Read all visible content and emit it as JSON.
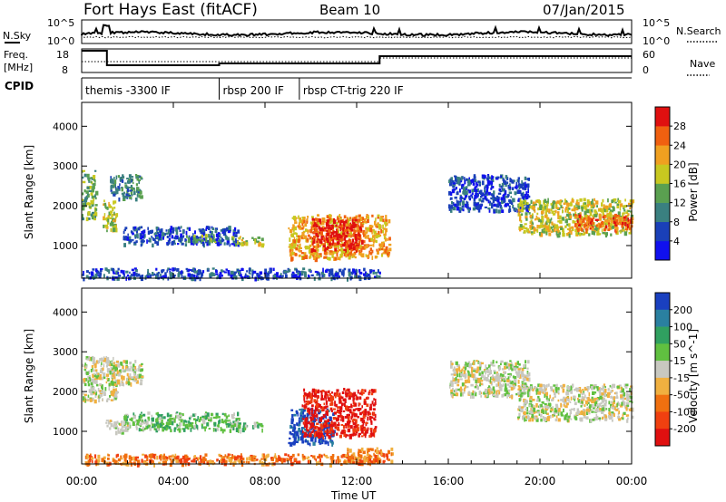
{
  "header": {
    "title": "Fort Hays East (fitACF)",
    "beam": "Beam 10",
    "date": "07/Jan/2015"
  },
  "sky_panel": {
    "left_label": "N.Sky",
    "right_label": "N.Search",
    "left_ticks": [
      "10^5",
      "10^0"
    ],
    "right_ticks": [
      "10^5",
      "10^0"
    ]
  },
  "freq_panel": {
    "left_label_top": "Freq.",
    "left_label_bottom": "[MHz]",
    "left_ticks": [
      "18",
      "8"
    ],
    "right_label": "Nave",
    "right_ticks": [
      "60",
      "0"
    ]
  },
  "cpid": {
    "label": "CPID",
    "segments": [
      {
        "start_hour": 0.0,
        "text": "themis -3300 IF"
      },
      {
        "start_hour": 6.0,
        "text": "rbsp 200 IF"
      },
      {
        "start_hour": 9.5,
        "text": "rbsp CT-trig 220 IF"
      }
    ]
  },
  "chart_data": [
    {
      "type": "heatmap",
      "name": "power",
      "ylabel": "Slant Range [km]",
      "xlim": [
        0,
        24
      ],
      "ylim": [
        180,
        4600
      ],
      "yticks": [
        "1000",
        "2000",
        "3000",
        "4000"
      ],
      "colorbar": {
        "label": "Power [dB]",
        "ticks": [
          "4",
          "8",
          "12",
          "16",
          "20",
          "24",
          "28"
        ],
        "colors": [
          "#1010ee",
          "#1a40b8",
          "#3a8080",
          "#5aa050",
          "#c8c820",
          "#f0a020",
          "#f06010",
          "#e01010"
        ]
      },
      "regions": [
        {
          "x": [
            0.0,
            0.6
          ],
          "y": [
            1700,
            2900
          ],
          "level": 3
        },
        {
          "x": [
            0.9,
            1.5
          ],
          "y": [
            1400,
            2200
          ],
          "level": 4
        },
        {
          "x": [
            1.2,
            2.6
          ],
          "y": [
            2200,
            2800
          ],
          "level": 2
        },
        {
          "x": [
            1.8,
            6.8
          ],
          "y": [
            1050,
            1500
          ],
          "level": 1
        },
        {
          "x": [
            4.5,
            5.8
          ],
          "y": [
            1100,
            1300
          ],
          "level": 3
        },
        {
          "x": [
            6.5,
            7.9
          ],
          "y": [
            1050,
            1250
          ],
          "level": 4
        },
        {
          "x": [
            9.0,
            13.4
          ],
          "y": [
            700,
            1800
          ],
          "level": 5
        },
        {
          "x": [
            10.0,
            12.2
          ],
          "y": [
            900,
            1700
          ],
          "level": 7
        },
        {
          "x": [
            16.0,
            19.5
          ],
          "y": [
            1900,
            2800
          ],
          "level": 1
        },
        {
          "x": [
            19.0,
            24.0
          ],
          "y": [
            1300,
            2200
          ],
          "level": 4
        },
        {
          "x": [
            21.5,
            24.0
          ],
          "y": [
            1400,
            1800
          ],
          "level": 6
        },
        {
          "x": [
            0.0,
            13.0
          ],
          "y": [
            200,
            450
          ],
          "level": 1
        }
      ]
    },
    {
      "type": "heatmap",
      "name": "velocity",
      "ylabel": "Slant Range [km]",
      "xlabel": "Time UT",
      "xlim": [
        0,
        24
      ],
      "ylim": [
        180,
        4600
      ],
      "yticks": [
        "1000",
        "2000",
        "3000",
        "4000"
      ],
      "xticks": [
        "00:00",
        "04:00",
        "08:00",
        "12:00",
        "16:00",
        "20:00",
        "00:00"
      ],
      "colorbar": {
        "label": "Velocity [m s^-1]",
        "ticks": [
          "200",
          "100",
          "50",
          "15",
          "-15",
          "-50",
          "-100",
          "-200"
        ],
        "colors": [
          "#1a40c0",
          "#2a80a0",
          "#30a060",
          "#60c040",
          "#c8c8c0",
          "#f0b040",
          "#f07010",
          "#f04010",
          "#e01010"
        ]
      },
      "regions": [
        {
          "x": [
            0.0,
            1.5
          ],
          "y": [
            1800,
            2900
          ],
          "level": 4
        },
        {
          "x": [
            1.2,
            2.6
          ],
          "y": [
            2200,
            2800
          ],
          "level": 4
        },
        {
          "x": [
            1.8,
            6.8
          ],
          "y": [
            1050,
            1500
          ],
          "level": 3
        },
        {
          "x": [
            1.0,
            2.0
          ],
          "y": [
            1000,
            1300
          ],
          "level": 4
        },
        {
          "x": [
            6.5,
            7.9
          ],
          "y": [
            1050,
            1250
          ],
          "level": 3
        },
        {
          "x": [
            9.0,
            11.0
          ],
          "y": [
            700,
            1600
          ],
          "level": 0
        },
        {
          "x": [
            9.6,
            12.8
          ],
          "y": [
            900,
            2100
          ],
          "level": 8
        },
        {
          "x": [
            11.5,
            13.5
          ],
          "y": [
            250,
            600
          ],
          "level": 6
        },
        {
          "x": [
            16.0,
            19.5
          ],
          "y": [
            1900,
            2800
          ],
          "level": 4
        },
        {
          "x": [
            19.0,
            24.0
          ],
          "y": [
            1300,
            2200
          ],
          "level": 4
        },
        {
          "x": [
            0.0,
            13.0
          ],
          "y": [
            200,
            450
          ],
          "level": 6
        }
      ]
    }
  ]
}
